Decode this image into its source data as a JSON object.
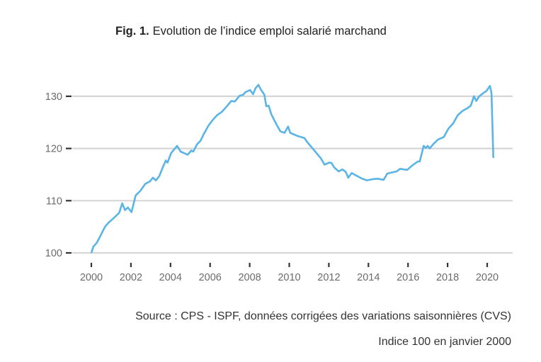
{
  "chart_data": {
    "type": "line",
    "title_prefix": "Fig. 1.",
    "title": "Evolution de l’indice emploi salarié marchand",
    "xlabel": "",
    "ylabel": "",
    "xlim": [
      1999.1,
      2021.3
    ],
    "ylim": [
      100,
      130
    ],
    "grid": "horizontal",
    "line_color": "#5ab4e5",
    "grid_color": "#d6d6d6",
    "x_ticks": [
      "2000",
      "2002",
      "2004",
      "2006",
      "2008",
      "2010",
      "2012",
      "2014",
      "2016",
      "2018",
      "2020"
    ],
    "y_ticks": [
      "100",
      "110",
      "120",
      "130"
    ],
    "series": [
      {
        "x": [
          2000.0,
          2000.1,
          2000.27,
          2000.45,
          2000.69,
          2000.87,
          2001.11,
          2001.41,
          2001.56,
          2001.7,
          2001.85,
          2002.03,
          2002.24,
          2002.48,
          2002.72,
          2002.96,
          2003.11,
          2003.26,
          2003.43,
          2003.61,
          2003.76,
          2003.85,
          2004.03,
          2004.33,
          2004.51,
          2004.69,
          2004.87,
          2005.05,
          2005.15,
          2005.34,
          2005.52,
          2005.7,
          2005.94,
          2006.12,
          2006.36,
          2006.59,
          2006.83,
          2007.07,
          2007.25,
          2007.49,
          2007.67,
          2007.79,
          2008.02,
          2008.17,
          2008.29,
          2008.44,
          2008.56,
          2008.74,
          2008.84,
          2008.96,
          2009.1,
          2009.34,
          2009.55,
          2009.76,
          2009.94,
          2010.05,
          2010.41,
          2010.77,
          2010.89,
          2011.25,
          2011.6,
          2011.78,
          2012.02,
          2012.14,
          2012.26,
          2012.5,
          2012.68,
          2012.86,
          2012.98,
          2013.16,
          2013.34,
          2013.69,
          2013.93,
          2014.17,
          2014.47,
          2014.77,
          2014.95,
          2015.18,
          2015.42,
          2015.6,
          2015.96,
          2016.2,
          2016.49,
          2016.59,
          2016.79,
          2016.9,
          2016.99,
          2017.1,
          2017.27,
          2017.51,
          2017.81,
          2018.04,
          2018.28,
          2018.52,
          2018.76,
          2018.99,
          2019.17,
          2019.33,
          2019.45,
          2019.6,
          2019.84,
          2019.96,
          2020.14,
          2020.22,
          2020.31
        ],
        "values": [
          100.0,
          101.2,
          101.9,
          103.2,
          105.0,
          105.8,
          106.6,
          107.7,
          109.5,
          108.2,
          108.7,
          107.8,
          111.0,
          111.9,
          113.2,
          113.7,
          114.4,
          113.9,
          114.7,
          116.4,
          117.7,
          117.3,
          119.1,
          120.5,
          119.4,
          119.1,
          118.8,
          119.6,
          119.4,
          120.8,
          121.5,
          122.9,
          124.5,
          125.4,
          126.4,
          127.0,
          128.0,
          129.1,
          129.0,
          130.1,
          130.3,
          130.8,
          131.2,
          130.4,
          131.5,
          132.2,
          131.3,
          130.3,
          128.1,
          128.2,
          126.5,
          124.7,
          123.3,
          123.0,
          124.2,
          123.0,
          122.4,
          122.0,
          121.3,
          119.7,
          118.1,
          116.9,
          117.3,
          117.2,
          116.4,
          115.6,
          116.0,
          115.5,
          114.4,
          115.3,
          114.9,
          114.2,
          113.9,
          114.1,
          114.2,
          114.0,
          115.2,
          115.4,
          115.6,
          116.1,
          115.9,
          116.7,
          117.5,
          117.5,
          120.5,
          120.1,
          120.5,
          120.0,
          120.8,
          121.7,
          122.2,
          123.8,
          124.8,
          126.4,
          127.2,
          127.7,
          128.2,
          130.0,
          129.1,
          130.0,
          130.7,
          131.0,
          132.0,
          130.6,
          118.2
        ]
      }
    ]
  },
  "source": "Source : CPS - ISPF, données corrigées des variations saisonnières (CVS)",
  "base_note": "Indice 100 en janvier 2000"
}
